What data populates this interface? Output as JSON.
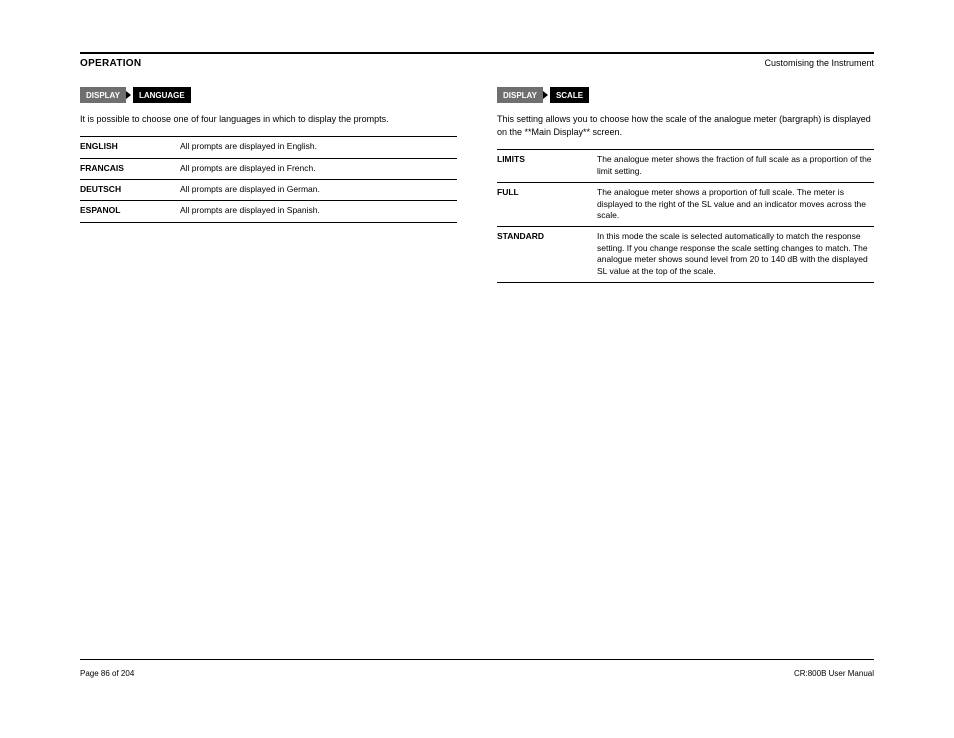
{
  "header": {
    "title": "OPERATION",
    "subtitle": "Customising the Instrument"
  },
  "left": {
    "crumb_parent": "DISPLAY",
    "crumb_current": "LANGUAGE",
    "lead": "It is possible to choose one of four languages in which to display the prompts.",
    "options": [
      {
        "name": "ENGLISH",
        "desc": "All prompts are displayed in English."
      },
      {
        "name": "FRANCAIS",
        "desc": "All prompts are displayed in French."
      },
      {
        "name": "DEUTSCH",
        "desc": "All prompts are displayed in German."
      },
      {
        "name": "ESPANOL",
        "desc": "All prompts are displayed in Spanish."
      }
    ]
  },
  "right": {
    "crumb_parent": "DISPLAY",
    "crumb_current": "SCALE",
    "lead": "This setting allows you to choose how the scale of the analogue meter (bargraph) is displayed on the **Main Display** screen.",
    "options": [
      {
        "name": "LIMITS",
        "desc": "The analogue meter shows the fraction of full scale as a proportion of the limit setting."
      },
      {
        "name": "FULL",
        "desc": "The analogue meter shows a proportion of full scale. The meter is displayed to the right of the SL value and an indicator moves across the scale."
      },
      {
        "name": "STANDARD",
        "desc": "In this mode the scale is selected automatically to match the response setting. If you change response the scale setting changes to match. The analogue meter shows sound level from 20 to 140 dB with the displayed SL value at the top of the scale."
      }
    ]
  },
  "footer": {
    "left": "Page 86 of 204",
    "right": "CR:800B User Manual"
  }
}
